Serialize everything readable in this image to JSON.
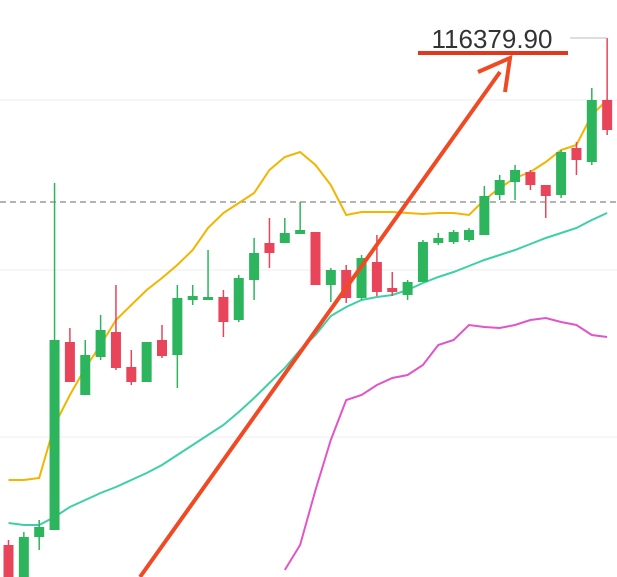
{
  "chart_data": {
    "type": "candlestick",
    "annotation": "116379.90",
    "ylim": [
      110990,
      116760
    ],
    "reference_line": 114740,
    "up_color": "#2db55d",
    "down_color": "#e8445a",
    "open": [
      111310,
      110990,
      111390,
      111460,
      113340,
      112810,
      113190,
      113440,
      113090,
      112940,
      113360,
      113210,
      113760,
      113760,
      113790,
      113560,
      113960,
      114330,
      114330,
      114420,
      114440,
      113910,
      114060,
      113780,
      114140,
      113880,
      113810,
      113940,
      114330,
      114340,
      114360,
      114410,
      114810,
      114940,
      115040,
      114910,
      114810,
      115280,
      115140,
      115760
    ],
    "high": [
      111360,
      111440,
      111560,
      114930,
      113480,
      113360,
      113610,
      113910,
      113260,
      113340,
      113510,
      113910,
      113910,
      114260,
      113860,
      114010,
      114380,
      114580,
      114580,
      114740,
      114440,
      114080,
      114110,
      114210,
      114410,
      114040,
      113960,
      114360,
      114430,
      114460,
      114480,
      114900,
      115010,
      115110,
      115060,
      114910,
      115260,
      115340,
      115880,
      116379.9
    ],
    "low": [
      110990,
      110990,
      111260,
      111460,
      112940,
      112810,
      113160,
      113060,
      112910,
      112940,
      113180,
      112880,
      113710,
      113760,
      113390,
      113540,
      113760,
      114080,
      114330,
      114420,
      113910,
      113740,
      113730,
      113760,
      113800,
      113800,
      113760,
      113940,
      114310,
      114320,
      114340,
      114410,
      114760,
      114760,
      114860,
      114580,
      114780,
      115010,
      115110,
      115410
    ],
    "close": [
      110990,
      111390,
      111490,
      113360,
      112940,
      113210,
      113460,
      113080,
      112940,
      113340,
      113200,
      113780,
      113800,
      113790,
      113540,
      113980,
      114230,
      114230,
      114430,
      114460,
      113910,
      114060,
      113780,
      114180,
      113840,
      113840,
      113940,
      114340,
      114380,
      114440,
      114460,
      114800,
      114960,
      115060,
      114910,
      114800,
      115240,
      115160,
      115760,
      115460
    ],
    "lines": [
      {
        "color": "#f5b400",
        "values": [
          111960,
          111960,
          111980,
          112510,
          112810,
          113080,
          113310,
          113560,
          113710,
          113860,
          113980,
          114110,
          114260,
          114480,
          114630,
          114730,
          114830,
          115060,
          115190,
          115240,
          115110,
          114910,
          114610,
          114640,
          114640,
          114640,
          114630,
          114620,
          114630,
          114630,
          114610,
          114760,
          114880,
          114980,
          115040,
          115140,
          115260,
          115310,
          115610,
          115760
        ]
      },
      {
        "color": "#3ecfa8",
        "values": [
          111530,
          111510,
          111510,
          111590,
          111690,
          111760,
          111830,
          111890,
          111960,
          112030,
          112110,
          112210,
          112310,
          112410,
          112510,
          112640,
          112780,
          112930,
          113080,
          113260,
          113410,
          113600,
          113690,
          113760,
          113790,
          113810,
          113860,
          113930,
          113990,
          114040,
          114100,
          114160,
          114210,
          114260,
          114320,
          114380,
          114430,
          114480,
          114560,
          114630
        ]
      },
      {
        "color": "#e055c9",
        "values": [
          null,
          null,
          null,
          null,
          null,
          null,
          null,
          null,
          null,
          null,
          null,
          null,
          null,
          null,
          null,
          null,
          null,
          null,
          111060,
          111310,
          111860,
          112360,
          112760,
          112810,
          112910,
          112980,
          113010,
          113110,
          113310,
          113360,
          113510,
          113490,
          113480,
          113510,
          113560,
          113580,
          113540,
          113510,
          113410,
          113390
        ]
      }
    ]
  }
}
